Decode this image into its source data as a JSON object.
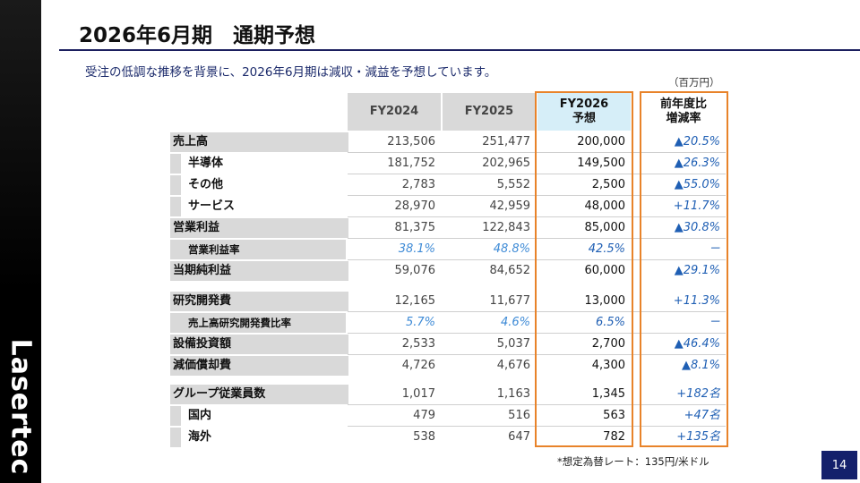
{
  "logo": "Lasertec",
  "title": "2026年6月期　通期予想",
  "subtitle": "受注の低調な推移を背景に、2026年6月期は減収・減益を予想しています。",
  "unit": "（百万円）",
  "columns": {
    "fy2024": "FY2024",
    "fy2025": "FY2025",
    "fy2026_line1": "FY2026",
    "fy2026_line2": "予想",
    "change_line1": "前年度比",
    "change_line2": "増減率"
  },
  "rows": [
    {
      "label": "売上高",
      "fy2024": "213,506",
      "fy2025": "251,477",
      "fy2026": "200,000",
      "change": "▲20.5%"
    },
    {
      "label": "半導体",
      "fy2024": "181,752",
      "fy2025": "202,965",
      "fy2026": "149,500",
      "change": "▲26.3%"
    },
    {
      "label": "その他",
      "fy2024": "2,783",
      "fy2025": "5,552",
      "fy2026": "2,500",
      "change": "▲55.0%"
    },
    {
      "label": "サービス",
      "fy2024": "28,970",
      "fy2025": "42,959",
      "fy2026": "48,000",
      "change": "+11.7%"
    },
    {
      "label": "営業利益",
      "fy2024": "81,375",
      "fy2025": "122,843",
      "fy2026": "85,000",
      "change": "▲30.8%"
    },
    {
      "label": "営業利益率",
      "fy2024": "38.1%",
      "fy2025": "48.8%",
      "fy2026": "42.5%",
      "change": "－"
    },
    {
      "label": "当期純利益",
      "fy2024": "59,076",
      "fy2025": "84,652",
      "fy2026": "60,000",
      "change": "▲29.1%"
    },
    {
      "label": "研究開発費",
      "fy2024": "12,165",
      "fy2025": "11,677",
      "fy2026": "13,000",
      "change": "+11.3%"
    },
    {
      "label": "売上高研究開発費比率",
      "fy2024": "5.7%",
      "fy2025": "4.6%",
      "fy2026": "6.5%",
      "change": "－"
    },
    {
      "label": "設備投資額",
      "fy2024": "2,533",
      "fy2025": "5,037",
      "fy2026": "2,700",
      "change": "▲46.4%"
    },
    {
      "label": "減価償却費",
      "fy2024": "4,726",
      "fy2025": "4,676",
      "fy2026": "4,300",
      "change": "▲8.1%"
    },
    {
      "label": "グループ従業員数",
      "fy2024": "1,017",
      "fy2025": "1,163",
      "fy2026": "1,345",
      "change": "+182名"
    },
    {
      "label": "国内",
      "fy2024": "479",
      "fy2025": "516",
      "fy2026": "563",
      "change": "+47名"
    },
    {
      "label": "海外",
      "fy2024": "538",
      "fy2025": "647",
      "fy2026": "782",
      "change": "+135名"
    }
  ],
  "footnote": "*想定為替レート：135円/米ドル",
  "page_number": "14"
}
